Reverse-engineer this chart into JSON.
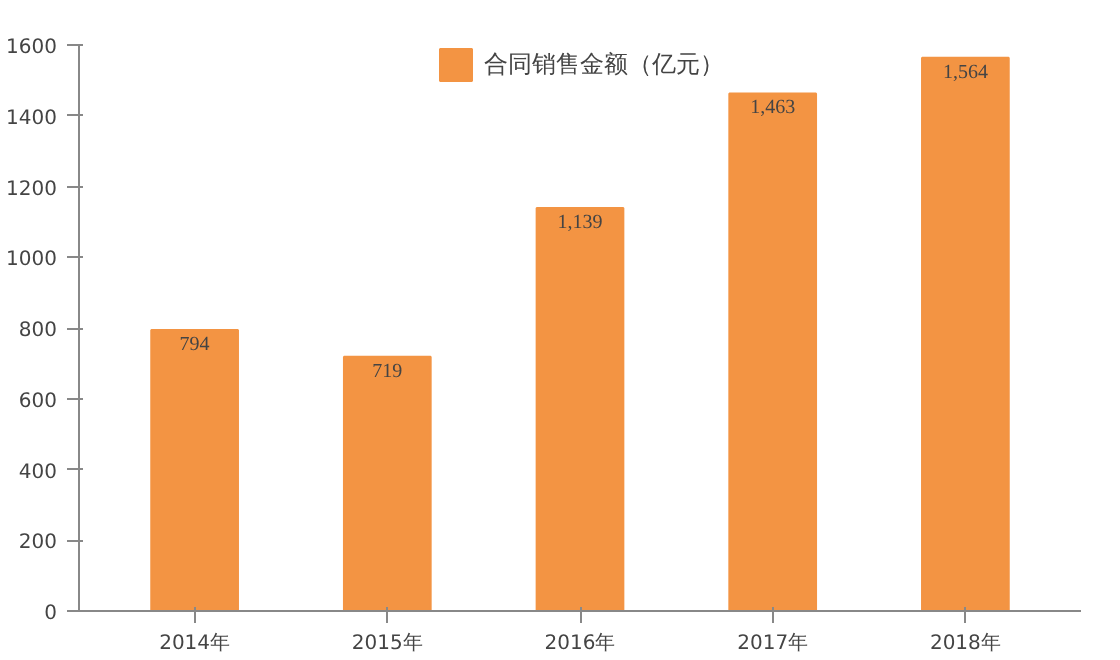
{
  "chart_data": {
    "type": "bar",
    "categories": [
      "2014年",
      "2015年",
      "2016年",
      "2017年",
      "2018年"
    ],
    "series": [
      {
        "name": "合同销售金额（亿元）",
        "color": "#f39443",
        "values": [
          794,
          719,
          1139,
          1463,
          1564
        ]
      }
    ],
    "value_labels": [
      "794",
      "719",
      "1,139",
      "1,463",
      "1,564"
    ],
    "ylim": [
      0,
      1600
    ],
    "yticks": [
      0,
      200,
      400,
      600,
      800,
      1000,
      1200,
      1400,
      1600
    ],
    "grid": false,
    "legend": "top"
  }
}
